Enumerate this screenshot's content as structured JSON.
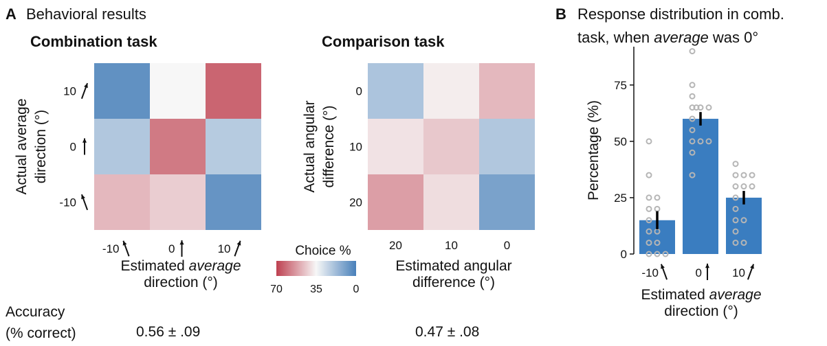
{
  "panel_a": {
    "letter": "A",
    "title": "Behavioral results"
  },
  "panel_b": {
    "letter": "B",
    "title_line1": "Response distribution in comb.",
    "title_line2_pre": "task, when ",
    "title_line2_em": "average",
    "title_line2_post": " was 0°"
  },
  "colorbar": {
    "title": "Choice %",
    "ticks": [
      "70",
      "35",
      "0"
    ],
    "colors": [
      "#b2182b",
      "#f7f7f7",
      "#2166ac"
    ]
  },
  "accuracy": {
    "label_line1": "Accuracy",
    "label_line2": "(% correct)",
    "combination": "0.56 ± .09",
    "comparison": "0.47 ± .08"
  },
  "chart_data": [
    {
      "type": "heatmap",
      "title": "Combination task",
      "ylabel": "Actual average direction (°)",
      "ylabel_line1": "Actual average",
      "ylabel_line2": "direction (°)",
      "xlabel_line1_pre": "Estimated ",
      "xlabel_line1_em": "average",
      "xlabel_line2": "direction (°)",
      "row_labels": [
        "10",
        "0",
        "-10"
      ],
      "col_labels": [
        "-10",
        "0",
        "10"
      ],
      "values": [
        [
          5,
          35,
          63
        ],
        [
          21,
          59,
          22
        ],
        [
          47,
          43,
          6
        ]
      ],
      "vmin": 0,
      "vmax": 70
    },
    {
      "type": "heatmap",
      "title": "Comparison task",
      "ylabel": "Actual angular difference (°)",
      "ylabel_line1": "Actual angular",
      "ylabel_line2": "difference (°)",
      "xlabel_line1": "Estimated angular",
      "xlabel_line2": "difference (°)",
      "row_labels": [
        "0",
        "10",
        "20"
      ],
      "col_labels": [
        "20",
        "10",
        "0"
      ],
      "values": [
        [
          20,
          37,
          47
        ],
        [
          39,
          44,
          21
        ],
        [
          52,
          40,
          10
        ]
      ],
      "vmin": 0,
      "vmax": 70
    },
    {
      "type": "bar",
      "categories": [
        "-10",
        "0",
        "10"
      ],
      "values": [
        15,
        60,
        25
      ],
      "errors": [
        4,
        3,
        3
      ],
      "ylabel": "Percentage (%)",
      "xlabel_pre": "Estimated ",
      "xlabel_em": "average",
      "xlabel_line2": "direction (°)",
      "ylim": [
        0,
        92
      ],
      "yticks": [
        0,
        25,
        50,
        75
      ],
      "bar_color": "#3a7dc0",
      "points": [
        [
          50,
          35,
          25,
          25,
          20,
          20,
          15,
          10,
          10,
          5,
          5,
          0,
          0,
          0
        ],
        [
          90,
          75,
          70,
          65,
          65,
          65,
          65,
          60,
          55,
          50,
          50,
          50,
          45,
          35
        ],
        [
          40,
          35,
          35,
          35,
          30,
          30,
          30,
          25,
          20,
          15,
          15,
          10,
          5,
          5
        ]
      ]
    }
  ]
}
